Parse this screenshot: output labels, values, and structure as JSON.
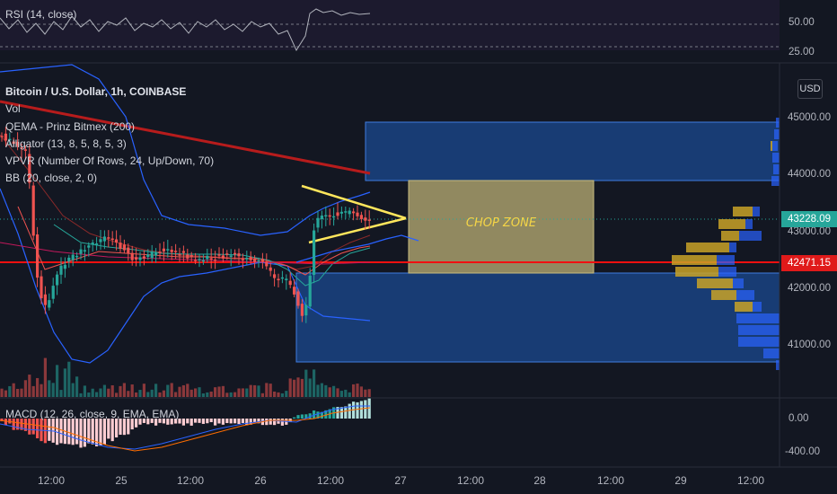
{
  "chart_data": {
    "type": "candlestick",
    "symbol": "Bitcoin / U.S. Dollar, 1h, COINBASE",
    "currency": "USD",
    "indicators": [
      "Vol",
      "QEMA - Prinz Bitmex (200)",
      "Alligator (13, 8, 5, 8, 5, 3)",
      "VPVR (Number Of Rows, 24, Up/Down, 70)",
      "BB (20, close, 2, 0)"
    ],
    "price_axis": {
      "ticks": [
        "45000.00",
        "44000.00",
        "43000.00",
        "42000.00",
        "41000.00"
      ],
      "last_price": "43228.09",
      "line_price": "42471.15"
    },
    "time_axis": [
      "12:00",
      "25",
      "12:00",
      "26",
      "12:00",
      "27",
      "12:00",
      "28",
      "12:00",
      "29",
      "12:00"
    ],
    "rsi": {
      "label": "RSI (14, close)",
      "ticks": [
        "50.00",
        "25.00"
      ]
    },
    "macd": {
      "label": "MACD (12, 26, close, 9, EMA, EMA)",
      "ticks": [
        "0.00",
        "-400.00"
      ]
    },
    "annotation": "CHOP ZONE",
    "colors": {
      "background": "#131722",
      "up": "#26a69a",
      "down": "#ef5350",
      "zone_blue": "#2962ff",
      "chop_zone": "#a89d6b",
      "trendline": "#b71c1c",
      "triangle": "#ffe65c",
      "horizontal_line": "#f01010"
    }
  }
}
